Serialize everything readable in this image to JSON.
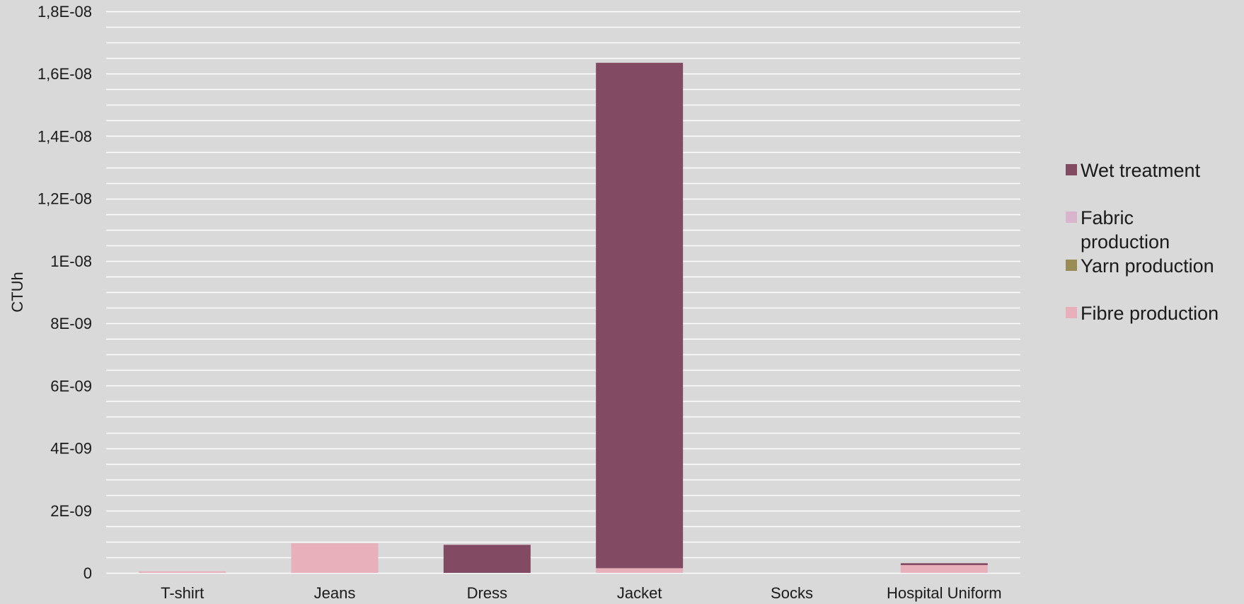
{
  "chart_data": {
    "type": "bar",
    "stacked": true,
    "categories": [
      "T-shirt",
      "Jeans",
      "Dress",
      "Jacket",
      "Socks",
      "Hospital Uniform"
    ],
    "series": [
      {
        "name": "Fibre production",
        "color": "#e8b0bb",
        "values": [
          5e-11,
          9.5e-10,
          0,
          1.5e-10,
          0,
          2.5e-10
        ]
      },
      {
        "name": "Yarn production",
        "color": "#998d55",
        "values": [
          0,
          0,
          0,
          0,
          0,
          0
        ]
      },
      {
        "name": "Fabric production",
        "color": "#d8b4cf",
        "values": [
          0,
          0,
          0,
          0,
          0,
          0
        ]
      },
      {
        "name": "Wet treatment",
        "color": "#834a63",
        "values": [
          0,
          0,
          9e-10,
          1.62e-08,
          0,
          6e-11
        ]
      }
    ],
    "legend_order": [
      "Wet treatment",
      "Fabric production",
      "Yarn production",
      "Fibre production"
    ],
    "legend_lines": {
      "Wet treatment": [
        "Wet treatment"
      ],
      "Fabric production": [
        "Fabric",
        "production"
      ],
      "Yarn production": [
        "Yarn production"
      ],
      "Fibre production": [
        "Fibre production"
      ]
    },
    "yticks": [
      "0",
      "2E-09",
      "4E-09",
      "6E-09",
      "8E-09",
      "1E-08",
      "1,2E-08",
      "1,4E-08",
      "1,6E-08",
      "1,8E-08"
    ],
    "ylim": [
      0,
      1.8e-08
    ],
    "ylabel": "CTUh",
    "xlabel": "",
    "title": "",
    "grid": true,
    "legend_position": "right"
  }
}
